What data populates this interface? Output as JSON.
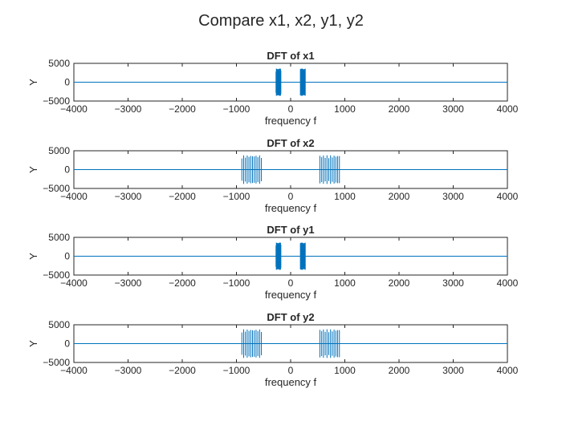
{
  "figure": {
    "suptitle": "Compare x1, x2, y1, y2"
  },
  "colors": {
    "series": "#0072BD",
    "axes": "#262626",
    "background": "#ffffff"
  },
  "chart_data": [
    {
      "type": "line",
      "title": "DFT of x1",
      "xlabel": "frequency f",
      "ylabel": "Y",
      "xlim": [
        -4000,
        4000
      ],
      "ylim": [
        -5000,
        5000
      ],
      "xticks": [
        -4000,
        -3000,
        -2000,
        -1000,
        0,
        1000,
        2000,
        3000,
        4000
      ],
      "yticks": [
        -5000,
        0,
        5000
      ],
      "grid": false,
      "bursts": [
        {
          "x_start": -270,
          "x_end": -180,
          "lines": 16,
          "amplitude": 3600
        },
        {
          "x_start": 180,
          "x_end": 270,
          "lines": 16,
          "amplitude": 3600
        }
      ]
    },
    {
      "type": "line",
      "title": "DFT of x2",
      "xlabel": "frequency f",
      "ylabel": "Y",
      "xlim": [
        -4000,
        4000
      ],
      "ylim": [
        -5000,
        5000
      ],
      "xticks": [
        -4000,
        -3000,
        -2000,
        -1000,
        0,
        1000,
        2000,
        3000,
        4000
      ],
      "yticks": [
        -5000,
        0,
        5000
      ],
      "grid": false,
      "bursts": [
        {
          "x_start": -900,
          "x_end": -540,
          "lines": 12,
          "amplitude": 3800
        },
        {
          "x_start": 540,
          "x_end": 900,
          "lines": 12,
          "amplitude": 3800
        }
      ]
    },
    {
      "type": "line",
      "title": "DFT of y1",
      "xlabel": "frequency f",
      "ylabel": "Y",
      "xlim": [
        -4000,
        4000
      ],
      "ylim": [
        -5000,
        5000
      ],
      "xticks": [
        -4000,
        -3000,
        -2000,
        -1000,
        0,
        1000,
        2000,
        3000,
        4000
      ],
      "yticks": [
        -5000,
        0,
        5000
      ],
      "grid": false,
      "bursts": [
        {
          "x_start": -270,
          "x_end": -180,
          "lines": 16,
          "amplitude": 3600
        },
        {
          "x_start": 180,
          "x_end": 270,
          "lines": 16,
          "amplitude": 3600
        }
      ]
    },
    {
      "type": "line",
      "title": "DFT of y2",
      "xlabel": "frequency f",
      "ylabel": "Y",
      "xlim": [
        -4000,
        4000
      ],
      "ylim": [
        -5000,
        5000
      ],
      "xticks": [
        -4000,
        -3000,
        -2000,
        -1000,
        0,
        1000,
        2000,
        3000,
        4000
      ],
      "yticks": [
        -5000,
        0,
        5000
      ],
      "grid": false,
      "bursts": [
        {
          "x_start": -900,
          "x_end": -540,
          "lines": 12,
          "amplitude": 3800
        },
        {
          "x_start": 540,
          "x_end": 900,
          "lines": 12,
          "amplitude": 3800
        }
      ]
    }
  ]
}
